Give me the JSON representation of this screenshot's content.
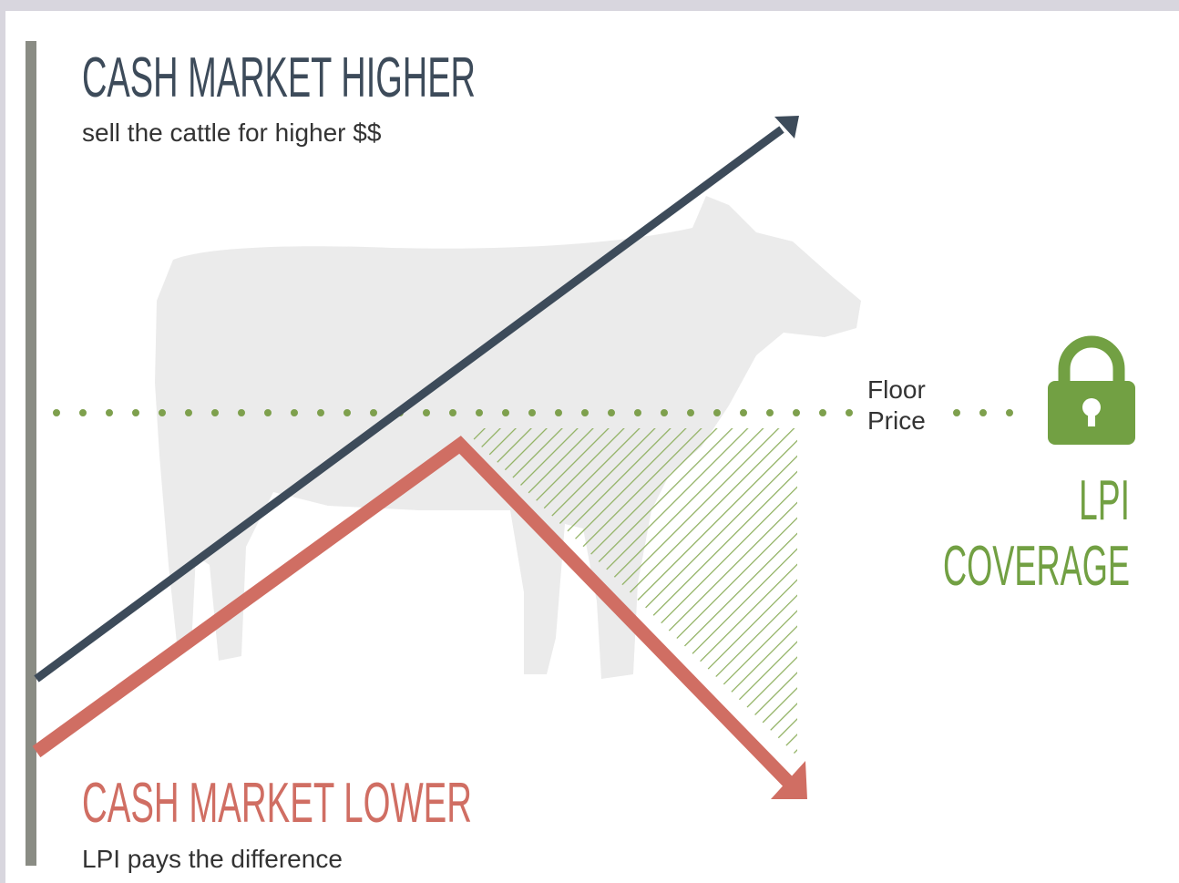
{
  "top": {
    "title": "CASH MARKET HIGHER",
    "subtitle": "sell the cattle for higher $$"
  },
  "floor_label": [
    "Floor",
    "Price"
  ],
  "coverage_label": [
    "LPI",
    "COVERAGE"
  ],
  "bottom": {
    "title": "CASH MARKET LOWER",
    "subtitle": "LPI pays the difference"
  }
}
